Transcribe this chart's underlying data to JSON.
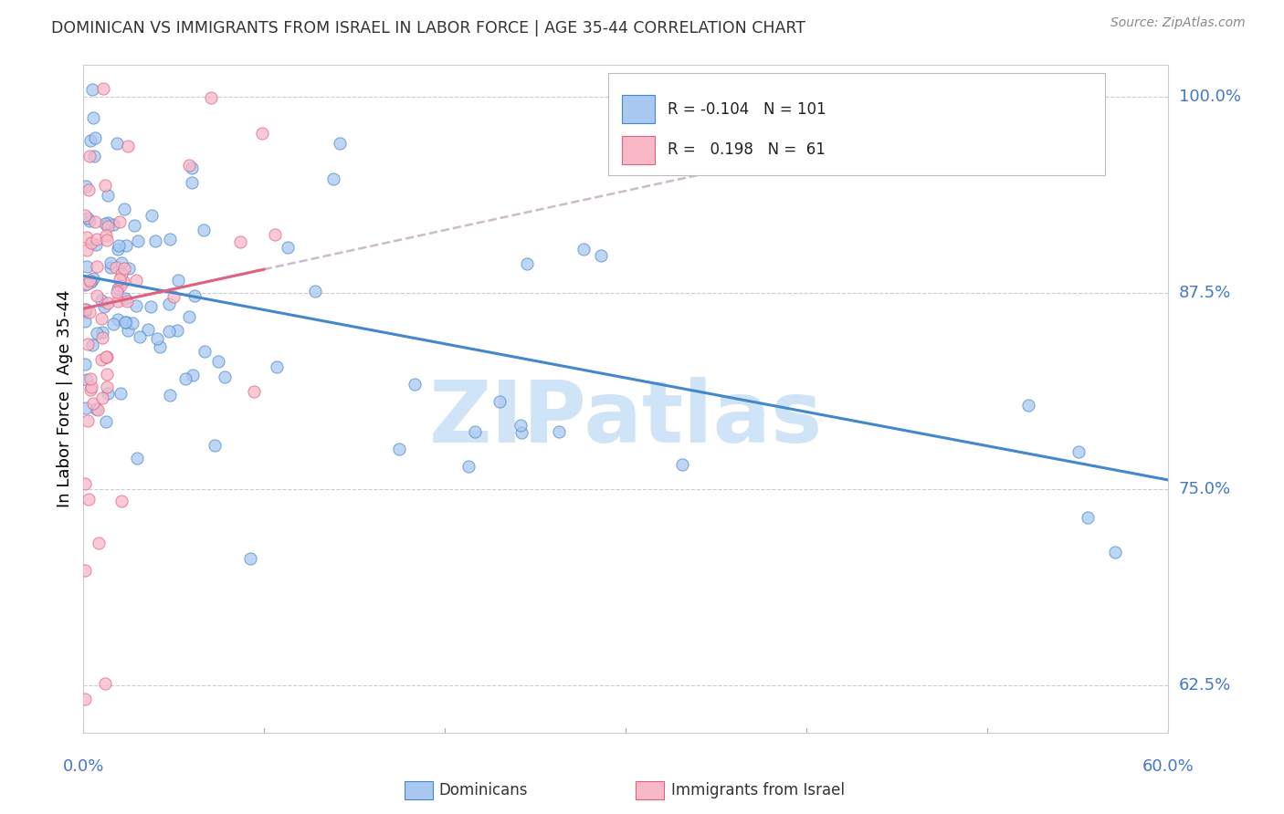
{
  "title": "DOMINICAN VS IMMIGRANTS FROM ISRAEL IN LABOR FORCE | AGE 35-44 CORRELATION CHART",
  "source": "Source: ZipAtlas.com",
  "ylabel": "In Labor Force | Age 35-44",
  "yticks": [
    0.625,
    0.75,
    0.875,
    1.0
  ],
  "ytick_labels": [
    "62.5%",
    "75.0%",
    "87.5%",
    "100.0%"
  ],
  "xtick_labels": [
    "0.0%",
    "",
    "",
    "",
    "",
    "",
    "60.0%"
  ],
  "xlim": [
    0.0,
    0.6
  ],
  "ylim": [
    0.595,
    1.02
  ],
  "legend_blue_r": "-0.104",
  "legend_blue_n": "101",
  "legend_pink_r": "0.198",
  "legend_pink_n": "61",
  "blue_fill": "#A8C8F0",
  "pink_fill": "#F8B8C8",
  "blue_edge": "#4488CC",
  "pink_edge": "#E06080",
  "blue_line": "#4488CC",
  "pink_line": "#E06080",
  "dashed_color": "#CCBBCC",
  "title_color": "#333333",
  "axis_label_color": "#4477CC",
  "grid_color": "#CCCCCC",
  "watermark_color": "#D0E4F8",
  "watermark": "ZIPatlas"
}
